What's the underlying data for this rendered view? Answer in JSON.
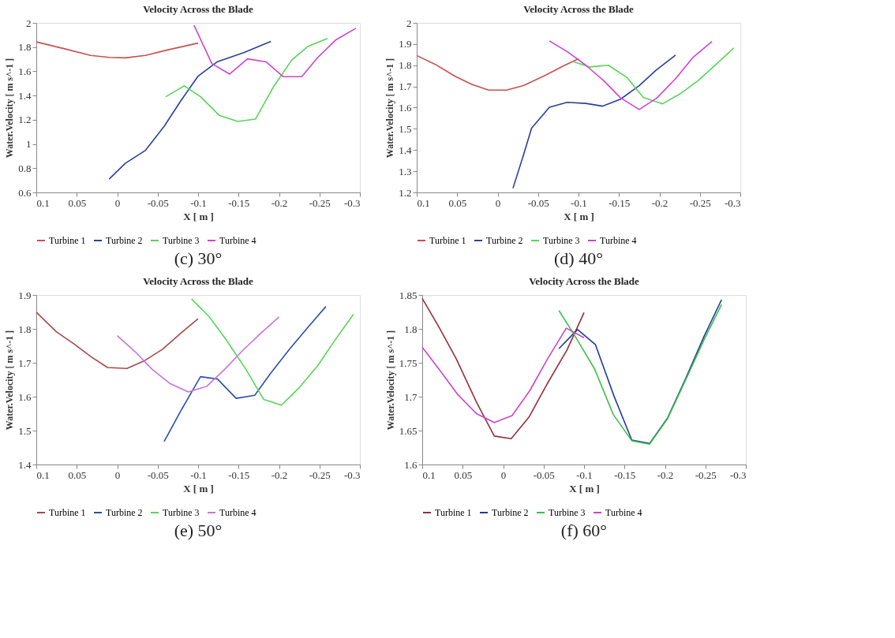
{
  "chart_data": [
    {
      "type": "line",
      "title": "Velocity Across the Blade",
      "xlabel": "X [ m ]",
      "ylabel": "Water.Velocity [ m s^-1 ]",
      "annotations": [
        "(c) 30°"
      ],
      "legend": "bottom",
      "xlim": [
        0.1,
        -0.3
      ],
      "xticks": [
        0.1,
        0.05,
        0,
        -0.05,
        -0.1,
        -0.15,
        -0.2,
        -0.25,
        -0.3
      ],
      "ylim": [
        0.6,
        2
      ],
      "yticks": [
        0.6,
        0.8,
        1,
        1.2,
        1.4,
        1.6,
        1.8,
        2
      ],
      "series": [
        {
          "name": "Turbine 1",
          "color": "#c9504d",
          "x": [
            0.1,
            0.065,
            0.033,
            0.01,
            -0.01,
            -0.035,
            -0.062,
            -0.1
          ],
          "values": [
            1.843,
            1.786,
            1.731,
            1.715,
            1.711,
            1.731,
            1.776,
            1.833
          ]
        },
        {
          "name": "Turbine 2",
          "color": "#2b3fa0",
          "x": [
            0.01,
            -0.01,
            -0.035,
            -0.058,
            -0.08,
            -0.1,
            -0.124,
            -0.157,
            -0.19
          ],
          "values": [
            0.71,
            0.84,
            0.948,
            1.145,
            1.37,
            1.56,
            1.68,
            1.756,
            1.847
          ]
        },
        {
          "name": "Turbine 3",
          "color": "#55d655",
          "x": [
            -0.06,
            -0.083,
            -0.103,
            -0.126,
            -0.149,
            -0.171,
            -0.194,
            -0.216,
            -0.236,
            -0.26
          ],
          "values": [
            1.39,
            1.48,
            1.39,
            1.237,
            1.186,
            1.206,
            1.481,
            1.695,
            1.807,
            1.872
          ]
        },
        {
          "name": "Turbine 4",
          "color": "#d440d4",
          "x": [
            -0.095,
            -0.117,
            -0.139,
            -0.161,
            -0.184,
            -0.205,
            -0.228,
            -0.248,
            -0.27,
            -0.295
          ],
          "values": [
            1.98,
            1.664,
            1.577,
            1.703,
            1.678,
            1.556,
            1.556,
            1.715,
            1.858,
            1.955
          ]
        }
      ]
    },
    {
      "type": "line",
      "title": "Velocity Across the Blade",
      "xlabel": "X [ m ]",
      "ylabel": "Water.Velocity [ m s^-1 ]",
      "annotations": [
        "(d) 40°"
      ],
      "legend": "bottom",
      "xlim": [
        0.1,
        -0.3
      ],
      "xticks": [
        0.1,
        0.05,
        0,
        -0.05,
        -0.1,
        -0.15,
        -0.2,
        -0.25,
        -0.3
      ],
      "ylim": [
        1.2,
        2
      ],
      "yticks": [
        1.2,
        1.3,
        1.4,
        1.5,
        1.6,
        1.7,
        1.8,
        1.9,
        2
      ],
      "series": [
        {
          "name": "Turbine 1",
          "color": "#c9504d",
          "x": [
            0.1,
            0.077,
            0.053,
            0.032,
            0.011,
            -0.011,
            -0.032,
            -0.058,
            -0.082,
            -0.1
          ],
          "values": [
            1.846,
            1.804,
            1.749,
            1.71,
            1.683,
            1.683,
            1.704,
            1.751,
            1.798,
            1.831
          ]
        },
        {
          "name": "Turbine 2",
          "color": "#2b3fa0",
          "x": [
            -0.019,
            -0.032,
            -0.042,
            -0.064,
            -0.086,
            -0.109,
            -0.13,
            -0.152,
            -0.175,
            -0.196,
            -0.22
          ],
          "values": [
            1.22,
            1.377,
            1.503,
            1.602,
            1.625,
            1.62,
            1.607,
            1.64,
            1.704,
            1.777,
            1.848
          ]
        },
        {
          "name": "Turbine 3",
          "color": "#55d655",
          "x": [
            -0.093,
            -0.114,
            -0.137,
            -0.16,
            -0.18,
            -0.204,
            -0.225,
            -0.248,
            -0.27,
            -0.292
          ],
          "values": [
            1.818,
            1.792,
            1.8,
            1.742,
            1.648,
            1.618,
            1.664,
            1.728,
            1.804,
            1.882
          ]
        },
        {
          "name": "Turbine 4",
          "color": "#d440d4",
          "x": [
            -0.064,
            -0.087,
            -0.109,
            -0.131,
            -0.152,
            -0.175,
            -0.197,
            -0.22,
            -0.242,
            -0.265
          ],
          "values": [
            1.915,
            1.862,
            1.8,
            1.728,
            1.646,
            1.591,
            1.646,
            1.737,
            1.839,
            1.912
          ]
        }
      ]
    },
    {
      "type": "line",
      "title": "Velocity Across the Blade",
      "xlabel": "X [ m ]",
      "ylabel": "Water.Velocity [ m s^-1 ]",
      "annotations": [
        "(e) 50°"
      ],
      "legend": "bottom",
      "xlim": [
        0.1,
        -0.3
      ],
      "xticks": [
        0.1,
        0.05,
        0,
        -0.05,
        -0.1,
        -0.15,
        -0.2,
        -0.25,
        -0.3
      ],
      "ylim": [
        1.4,
        1.9
      ],
      "yticks": [
        1.4,
        1.5,
        1.6,
        1.7,
        1.8,
        1.9
      ],
      "series": [
        {
          "name": "Turbine 1",
          "color": "#a84a4a",
          "x": [
            0.1,
            0.075,
            0.053,
            0.033,
            0.012,
            -0.012,
            -0.033,
            -0.056,
            -0.079,
            -0.1
          ],
          "values": [
            1.849,
            1.791,
            1.755,
            1.719,
            1.686,
            1.683,
            1.705,
            1.74,
            1.788,
            1.83
          ]
        },
        {
          "name": "Turbine 2",
          "color": "#2b4fb0",
          "x": [
            -0.058,
            -0.08,
            -0.103,
            -0.124,
            -0.147,
            -0.17,
            -0.189,
            -0.213,
            -0.236,
            -0.258
          ],
          "values": [
            1.468,
            1.564,
            1.659,
            1.652,
            1.595,
            1.604,
            1.667,
            1.74,
            1.805,
            1.866
          ]
        },
        {
          "name": "Turbine 3",
          "color": "#55d655",
          "x": [
            -0.092,
            -0.114,
            -0.135,
            -0.159,
            -0.181,
            -0.203,
            -0.224,
            -0.248,
            -0.269,
            -0.292
          ],
          "values": [
            1.888,
            1.835,
            1.767,
            1.681,
            1.592,
            1.575,
            1.624,
            1.692,
            1.766,
            1.843
          ]
        },
        {
          "name": "Turbine 4",
          "color": "#c873e0",
          "x": [
            0,
            -0.022,
            -0.043,
            -0.065,
            -0.088,
            -0.111,
            -0.133,
            -0.155,
            -0.178,
            -0.2
          ],
          "values": [
            1.78,
            1.733,
            1.681,
            1.639,
            1.614,
            1.631,
            1.681,
            1.736,
            1.788,
            1.835
          ]
        }
      ]
    },
    {
      "type": "line",
      "title": "Velocity Across the Blade",
      "xlabel": "X [ m ]",
      "ylabel": "Water.Velocity [ m s^-1 ]",
      "annotations": [
        "(f) 60°"
      ],
      "legend": "bottom",
      "xlim": [
        0.1,
        -0.3
      ],
      "xticks": [
        0.1,
        0.05,
        0,
        -0.05,
        -0.1,
        -0.15,
        -0.2,
        -0.25,
        -0.3
      ],
      "ylim": [
        1.6,
        1.85
      ],
      "yticks": [
        1.6,
        1.65,
        1.7,
        1.75,
        1.8,
        1.85
      ],
      "series": [
        {
          "name": "Turbine 1",
          "color": "#9b2d3a",
          "x": [
            0.1,
            0.079,
            0.058,
            0.033,
            0.011,
            -0.01,
            -0.032,
            -0.054,
            -0.079,
            -0.1
          ],
          "values": [
            1.845,
            1.802,
            1.756,
            1.692,
            1.642,
            1.638,
            1.67,
            1.718,
            1.769,
            1.824
          ]
        },
        {
          "name": "Turbine 2",
          "color": "#1f3a9a",
          "x": [
            -0.069,
            -0.092,
            -0.114,
            -0.137,
            -0.159,
            -0.181,
            -0.203,
            -0.225,
            -0.248,
            -0.27
          ],
          "values": [
            1.771,
            1.799,
            1.777,
            1.701,
            1.636,
            1.631,
            1.668,
            1.725,
            1.788,
            1.843
          ]
        },
        {
          "name": "Turbine 3",
          "color": "#3cc04a",
          "x": [
            -0.069,
            -0.09,
            -0.113,
            -0.136,
            -0.159,
            -0.181,
            -0.203,
            -0.225,
            -0.248,
            -0.27
          ],
          "values": [
            1.827,
            1.787,
            1.741,
            1.674,
            1.635,
            1.63,
            1.667,
            1.723,
            1.783,
            1.836
          ]
        },
        {
          "name": "Turbine 4",
          "color": "#cc44cc",
          "x": [
            0.1,
            0.079,
            0.056,
            0.033,
            0.011,
            -0.011,
            -0.033,
            -0.055,
            -0.078,
            -0.1
          ],
          "values": [
            1.773,
            1.74,
            1.703,
            1.675,
            1.662,
            1.672,
            1.709,
            1.756,
            1.801,
            1.787
          ]
        }
      ]
    }
  ]
}
